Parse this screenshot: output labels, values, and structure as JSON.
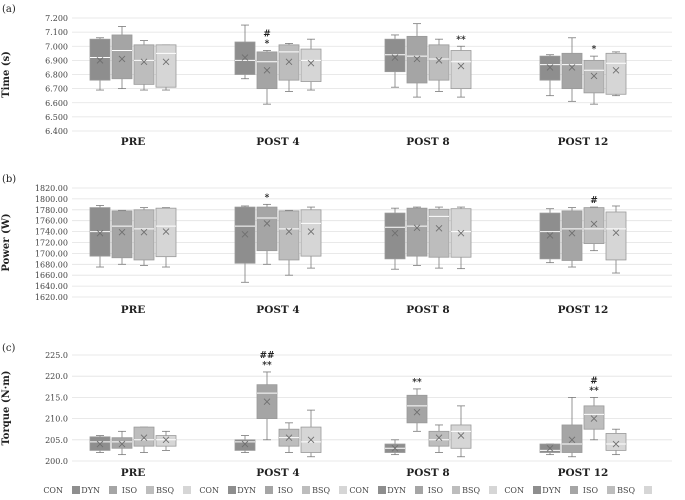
{
  "chart_data": [
    {
      "type": "box",
      "panel_label": "(a)",
      "ylabel": "Time (s)",
      "ylim": [
        6.4,
        7.2
      ],
      "yticks": [
        "6.400",
        "6.500",
        "6.600",
        "6.700",
        "6.800",
        "6.900",
        "7.000",
        "7.100",
        "7.200"
      ],
      "categories": [
        "PRE",
        "POST 4",
        "POST 8",
        "POST 12"
      ],
      "series_names": [
        "CON",
        "DYN",
        "ISO",
        "BSQ"
      ],
      "groups": [
        [
          {
            "min": 6.69,
            "q1": 6.76,
            "median": 6.92,
            "q3": 7.05,
            "max": 7.06,
            "mean": 6.9,
            "sig": ""
          },
          {
            "min": 6.7,
            "q1": 6.77,
            "median": 6.97,
            "q3": 7.08,
            "max": 7.14,
            "mean": 6.91,
            "sig": ""
          },
          {
            "min": 6.69,
            "q1": 6.73,
            "median": 6.9,
            "q3": 7.01,
            "max": 7.04,
            "mean": 6.89,
            "sig": ""
          },
          {
            "min": 6.69,
            "q1": 6.71,
            "median": 6.95,
            "q3": 7.01,
            "max": 7.01,
            "mean": 6.89,
            "sig": ""
          }
        ],
        [
          {
            "min": 6.77,
            "q1": 6.8,
            "median": 6.9,
            "q3": 7.03,
            "max": 7.15,
            "mean": 6.92,
            "sig": ""
          },
          {
            "min": 6.59,
            "q1": 6.7,
            "median": 6.89,
            "q3": 6.96,
            "max": 6.97,
            "mean": 6.83,
            "sig": "# *"
          },
          {
            "min": 6.68,
            "q1": 6.76,
            "median": 6.96,
            "q3": 7.01,
            "max": 7.02,
            "mean": 6.89,
            "sig": ""
          },
          {
            "min": 6.69,
            "q1": 6.75,
            "median": 6.9,
            "q3": 6.98,
            "max": 7.05,
            "mean": 6.88,
            "sig": ""
          }
        ],
        [
          {
            "min": 6.71,
            "q1": 6.82,
            "median": 6.94,
            "q3": 7.05,
            "max": 7.08,
            "mean": 6.92,
            "sig": ""
          },
          {
            "min": 6.64,
            "q1": 6.74,
            "median": 6.93,
            "q3": 7.07,
            "max": 7.16,
            "mean": 6.91,
            "sig": ""
          },
          {
            "min": 6.68,
            "q1": 6.76,
            "median": 6.91,
            "q3": 7.01,
            "max": 7.05,
            "mean": 6.9,
            "sig": ""
          },
          {
            "min": 6.64,
            "q1": 6.7,
            "median": 6.89,
            "q3": 6.97,
            "max": 7.0,
            "mean": 6.86,
            "sig": "**"
          }
        ],
        [
          {
            "min": 6.65,
            "q1": 6.76,
            "median": 6.87,
            "q3": 6.93,
            "max": 6.94,
            "mean": 6.85,
            "sig": ""
          },
          {
            "min": 6.61,
            "q1": 6.7,
            "median": 6.87,
            "q3": 6.95,
            "max": 7.06,
            "mean": 6.85,
            "sig": ""
          },
          {
            "min": 6.59,
            "q1": 6.67,
            "median": 6.83,
            "q3": 6.9,
            "max": 6.93,
            "mean": 6.79,
            "sig": "*"
          },
          {
            "min": 6.65,
            "q1": 6.66,
            "median": 6.88,
            "q3": 6.95,
            "max": 6.96,
            "mean": 6.83,
            "sig": ""
          }
        ]
      ]
    },
    {
      "type": "box",
      "panel_label": "(b)",
      "ylabel": "Power (W)",
      "ylim": [
        1620,
        1820
      ],
      "yticks": [
        "1620.00",
        "1640.00",
        "1660.00",
        "1680.00",
        "1700.00",
        "1720.00",
        "1740.00",
        "1760.00",
        "1780.00",
        "1800.00",
        "1820.00"
      ],
      "categories": [
        "PRE",
        "POST 4",
        "POST 8",
        "POST 12"
      ],
      "series_names": [
        "CON",
        "DYN",
        "ISO",
        "BSQ"
      ],
      "groups": [
        [
          {
            "min": 1675,
            "q1": 1695,
            "median": 1740,
            "q3": 1784,
            "max": 1788,
            "mean": 1737,
            "sig": ""
          },
          {
            "min": 1680,
            "q1": 1692,
            "median": 1750,
            "q3": 1778,
            "max": 1779,
            "mean": 1739,
            "sig": ""
          },
          {
            "min": 1678,
            "q1": 1688,
            "median": 1745,
            "q3": 1780,
            "max": 1784,
            "mean": 1739,
            "sig": ""
          },
          {
            "min": 1675,
            "q1": 1694,
            "median": 1750,
            "q3": 1783,
            "max": 1784,
            "mean": 1740,
            "sig": ""
          }
        ],
        [
          {
            "min": 1647,
            "q1": 1682,
            "median": 1750,
            "q3": 1785,
            "max": 1787,
            "mean": 1735,
            "sig": ""
          },
          {
            "min": 1680,
            "q1": 1705,
            "median": 1765,
            "q3": 1785,
            "max": 1790,
            "mean": 1755,
            "sig": "*"
          },
          {
            "min": 1660,
            "q1": 1688,
            "median": 1745,
            "q3": 1778,
            "max": 1779,
            "mean": 1740,
            "sig": ""
          },
          {
            "min": 1673,
            "q1": 1695,
            "median": 1755,
            "q3": 1780,
            "max": 1785,
            "mean": 1740,
            "sig": ""
          }
        ],
        [
          {
            "min": 1671,
            "q1": 1690,
            "median": 1748,
            "q3": 1774,
            "max": 1783,
            "mean": 1737,
            "sig": ""
          },
          {
            "min": 1678,
            "q1": 1695,
            "median": 1750,
            "q3": 1783,
            "max": 1785,
            "mean": 1747,
            "sig": ""
          },
          {
            "min": 1673,
            "q1": 1693,
            "median": 1768,
            "q3": 1781,
            "max": 1785,
            "mean": 1746,
            "sig": ""
          },
          {
            "min": 1672,
            "q1": 1693,
            "median": 1740,
            "q3": 1782,
            "max": 1785,
            "mean": 1737,
            "sig": ""
          }
        ],
        [
          {
            "min": 1683,
            "q1": 1690,
            "median": 1740,
            "q3": 1774,
            "max": 1782,
            "mean": 1733,
            "sig": ""
          },
          {
            "min": 1675,
            "q1": 1687,
            "median": 1745,
            "q3": 1778,
            "max": 1784,
            "mean": 1737,
            "sig": ""
          },
          {
            "min": 1705,
            "q1": 1718,
            "median": 1745,
            "q3": 1784,
            "max": 1785,
            "mean": 1754,
            "sig": "#"
          },
          {
            "min": 1664,
            "q1": 1688,
            "median": 1745,
            "q3": 1776,
            "max": 1787,
            "mean": 1738,
            "sig": ""
          }
        ]
      ]
    },
    {
      "type": "box",
      "panel_label": "(c)",
      "ylabel": "Torque (N·m)",
      "ylim": [
        200,
        225
      ],
      "yticks": [
        "200.0",
        "205.0",
        "210.0",
        "215.0",
        "220.0",
        "225.0"
      ],
      "categories": [
        "PRE",
        "POST 4",
        "POST 8",
        "POST 12"
      ],
      "series_names": [
        "CON",
        "DYN",
        "ISO",
        "BSQ"
      ],
      "groups": [
        [
          {
            "min": 202,
            "q1": 202.5,
            "median": 204.5,
            "q3": 205.7,
            "max": 206,
            "mean": 204,
            "sig": ""
          },
          {
            "min": 201.5,
            "q1": 203,
            "median": 204.5,
            "q3": 205.5,
            "max": 207,
            "mean": 204,
            "sig": ""
          },
          {
            "min": 202,
            "q1": 203.5,
            "median": 205,
            "q3": 208,
            "max": 208,
            "mean": 205.5,
            "sig": ""
          },
          {
            "min": 202.5,
            "q1": 203.5,
            "median": 205,
            "q3": 206,
            "max": 207,
            "mean": 205,
            "sig": ""
          }
        ],
        [
          {
            "min": 202,
            "q1": 202.5,
            "median": 204.5,
            "q3": 205,
            "max": 206,
            "mean": 204,
            "sig": ""
          },
          {
            "min": 205,
            "q1": 210,
            "median": 216,
            "q3": 218,
            "max": 221,
            "mean": 214,
            "sig": "## **"
          },
          {
            "min": 202,
            "q1": 203.5,
            "median": 205.5,
            "q3": 207.5,
            "max": 209,
            "mean": 205.5,
            "sig": ""
          },
          {
            "min": 201,
            "q1": 202,
            "median": 204.5,
            "q3": 208,
            "max": 212,
            "mean": 205,
            "sig": ""
          }
        ],
        [
          {
            "min": 201.5,
            "q1": 202,
            "median": 203,
            "q3": 204,
            "max": 205,
            "mean": 203,
            "sig": ""
          },
          {
            "min": 207,
            "q1": 209,
            "median": 213,
            "q3": 215.5,
            "max": 217,
            "mean": 211.5,
            "sig": "**"
          },
          {
            "min": 202,
            "q1": 203.5,
            "median": 205,
            "q3": 207,
            "max": 208.5,
            "mean": 205.5,
            "sig": ""
          },
          {
            "min": 201,
            "q1": 203,
            "median": 207,
            "q3": 208.5,
            "max": 213,
            "mean": 206,
            "sig": ""
          }
        ],
        [
          {
            "min": 201.5,
            "q1": 202,
            "median": 202.5,
            "q3": 204,
            "max": 204,
            "mean": 203,
            "sig": ""
          },
          {
            "min": 201,
            "q1": 202,
            "median": 204,
            "q3": 208.5,
            "max": 215,
            "mean": 205,
            "sig": ""
          },
          {
            "min": 205,
            "q1": 207.5,
            "median": 211,
            "q3": 213,
            "max": 215,
            "mean": 210,
            "sig": "# **"
          },
          {
            "min": 201.5,
            "q1": 202.5,
            "median": 204,
            "q3": 206.5,
            "max": 207.5,
            "mean": 204,
            "sig": ""
          }
        ]
      ]
    }
  ],
  "legend": {
    "items": [
      "CON",
      "DYN",
      "ISO",
      "BSQ"
    ],
    "colors": [
      "#8e8e8e",
      "#a5a5a5",
      "#bdbdbd",
      "#d6d6d6"
    ]
  },
  "colors": {
    "box_stroke": "#9a9a9a",
    "whisker": "#7a7a7a",
    "gridline": "#e2e2e2",
    "mean_marker": "#6f6f6f",
    "median_line": "#ffffff"
  }
}
